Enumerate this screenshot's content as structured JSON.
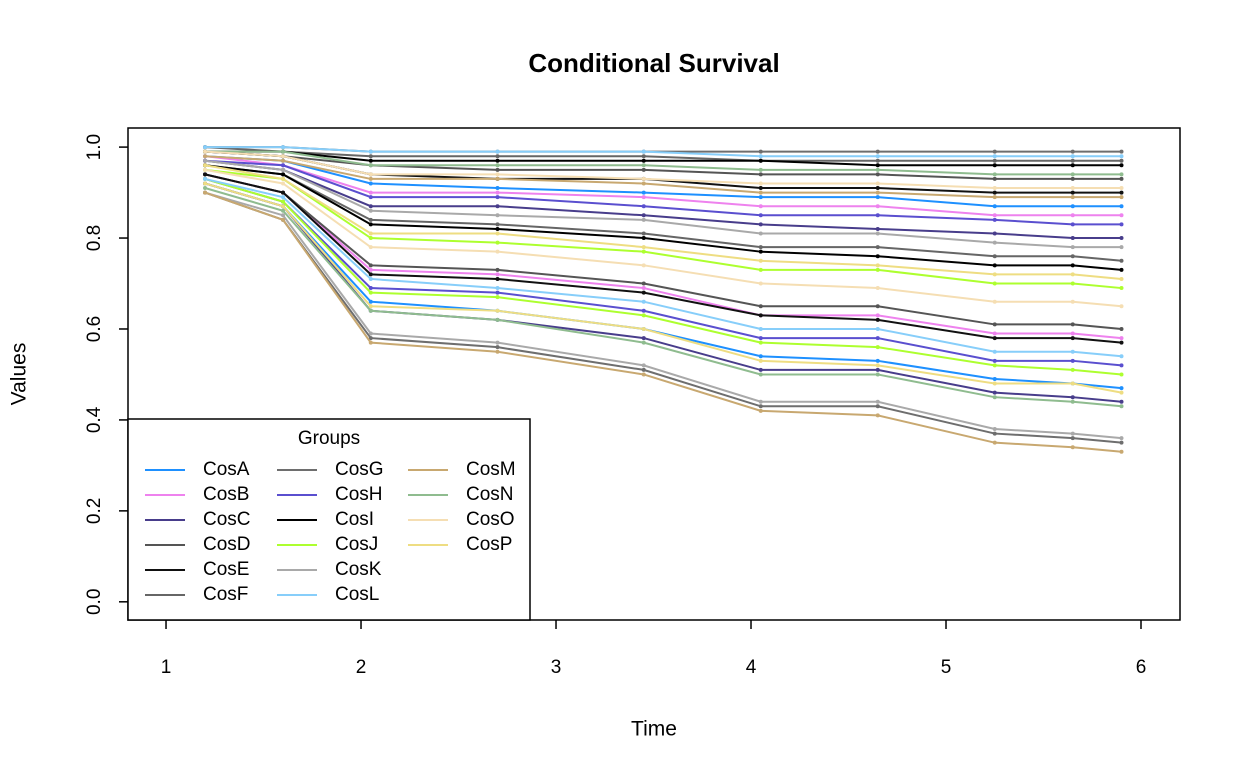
{
  "chart_data": {
    "type": "line",
    "title": "Conditional Survival",
    "x_label": "Time",
    "y_label": "Values",
    "x": [
      1.2,
      1.6,
      2.05,
      2.7,
      3.45,
      4.05,
      4.65,
      5.25,
      5.65,
      5.9
    ],
    "xlim": [
      0.805,
      6.2
    ],
    "xticks": [
      1,
      2,
      3,
      4,
      5,
      6
    ],
    "ylim": [
      -0.04,
      1.042
    ],
    "yticks": [
      0.0,
      0.2,
      0.4,
      0.6,
      0.8,
      1.0
    ],
    "yticks_labels": [
      "0.0",
      "0.2",
      "0.4",
      "0.6",
      "0.8",
      "1.0"
    ],
    "legend_title": "Groups",
    "legend_position": "bottom-left",
    "series": [
      {
        "name": "CosA",
        "color": "#1e90ff",
        "values": [
          [
            0.92,
            0.87,
            0.66,
            0.64,
            0.6,
            0.54,
            0.53,
            0.49,
            0.48,
            0.47
          ],
          [
            0.98,
            0.97,
            0.92,
            0.91,
            0.9,
            0.89,
            0.89,
            0.87,
            0.87,
            0.87
          ]
        ]
      },
      {
        "name": "CosB",
        "color": "#ee82ee",
        "values": [
          [
            0.94,
            0.9,
            0.73,
            0.72,
            0.69,
            0.63,
            0.63,
            0.59,
            0.59,
            0.58
          ],
          [
            0.98,
            0.96,
            0.9,
            0.9,
            0.89,
            0.87,
            0.87,
            0.85,
            0.85,
            0.85
          ]
        ]
      },
      {
        "name": "CosC",
        "color": "#483d8b",
        "values": [
          [
            0.92,
            0.87,
            0.64,
            0.62,
            0.58,
            0.51,
            0.51,
            0.46,
            0.45,
            0.44
          ],
          [
            0.97,
            0.95,
            0.87,
            0.87,
            0.85,
            0.83,
            0.82,
            0.81,
            0.8,
            0.8
          ]
        ]
      },
      {
        "name": "CosD",
        "color": "#555555",
        "values": [
          [
            0.94,
            0.9,
            0.74,
            0.73,
            0.7,
            0.65,
            0.65,
            0.61,
            0.61,
            0.6
          ],
          [
            0.99,
            0.98,
            0.96,
            0.95,
            0.95,
            0.94,
            0.94,
            0.93,
            0.93,
            0.93
          ]
        ]
      },
      {
        "name": "CosE",
        "color": "#111111",
        "values": [
          [
            0.94,
            0.9,
            0.72,
            0.71,
            0.68,
            0.63,
            0.62,
            0.58,
            0.58,
            0.57
          ],
          [
            0.99,
            0.98,
            0.94,
            0.93,
            0.93,
            0.91,
            0.91,
            0.9,
            0.9,
            0.9
          ]
        ]
      },
      {
        "name": "CosF",
        "color": "#666666",
        "values": [
          [
            0.96,
            0.94,
            0.84,
            0.83,
            0.81,
            0.78,
            0.78,
            0.76,
            0.76,
            0.75
          ],
          [
            1.0,
            0.99,
            0.98,
            0.98,
            0.98,
            0.97,
            0.97,
            0.97,
            0.97,
            0.97
          ]
        ]
      },
      {
        "name": "CosG",
        "color": "#6e6e6e",
        "values": [
          [
            0.9,
            0.84,
            0.58,
            0.56,
            0.51,
            0.43,
            0.43,
            0.37,
            0.36,
            0.35
          ],
          [
            1.0,
            1.0,
            0.99,
            0.99,
            0.99,
            0.99,
            0.99,
            0.99,
            0.99,
            0.99
          ]
        ]
      },
      {
        "name": "CosH",
        "color": "#5a4fcf",
        "values": [
          [
            0.93,
            0.88,
            0.69,
            0.68,
            0.64,
            0.58,
            0.58,
            0.53,
            0.53,
            0.52
          ],
          [
            0.97,
            0.96,
            0.89,
            0.89,
            0.87,
            0.85,
            0.85,
            0.84,
            0.83,
            0.83
          ]
        ]
      },
      {
        "name": "CosI",
        "color": "#000000",
        "values": [
          [
            0.96,
            0.94,
            0.83,
            0.82,
            0.8,
            0.77,
            0.76,
            0.74,
            0.74,
            0.73
          ],
          [
            0.99,
            0.99,
            0.97,
            0.97,
            0.97,
            0.97,
            0.96,
            0.96,
            0.96,
            0.96
          ]
        ]
      },
      {
        "name": "CosJ",
        "color": "#adff2f",
        "values": [
          [
            0.95,
            0.93,
            0.8,
            0.79,
            0.77,
            0.73,
            0.73,
            0.7,
            0.7,
            0.69
          ],
          [
            0.93,
            0.88,
            0.68,
            0.67,
            0.63,
            0.57,
            0.56,
            0.52,
            0.51,
            0.5
          ]
        ]
      },
      {
        "name": "CosK",
        "color": "#a9a9a9",
        "values": [
          [
            0.9,
            0.85,
            0.59,
            0.57,
            0.52,
            0.44,
            0.44,
            0.38,
            0.37,
            0.36
          ],
          [
            0.97,
            0.95,
            0.86,
            0.85,
            0.84,
            0.81,
            0.81,
            0.79,
            0.78,
            0.78
          ]
        ]
      },
      {
        "name": "CosL",
        "color": "#87cefa",
        "values": [
          [
            0.93,
            0.89,
            0.71,
            0.69,
            0.66,
            0.6,
            0.6,
            0.55,
            0.55,
            0.54
          ],
          [
            1.0,
            1.0,
            0.99,
            0.99,
            0.99,
            0.98,
            0.98,
            0.98,
            0.98,
            0.98
          ]
        ]
      },
      {
        "name": "CosM",
        "color": "#c8a870",
        "values": [
          [
            0.9,
            0.84,
            0.57,
            0.55,
            0.5,
            0.42,
            0.41,
            0.35,
            0.34,
            0.33
          ],
          [
            0.98,
            0.97,
            0.93,
            0.93,
            0.92,
            0.9,
            0.9,
            0.89,
            0.89,
            0.89
          ]
        ]
      },
      {
        "name": "CosN",
        "color": "#8fbc8f",
        "values": [
          [
            0.91,
            0.86,
            0.64,
            0.62,
            0.57,
            0.5,
            0.5,
            0.45,
            0.44,
            0.43
          ],
          [
            0.99,
            0.99,
            0.96,
            0.96,
            0.96,
            0.95,
            0.95,
            0.94,
            0.94,
            0.94
          ]
        ]
      },
      {
        "name": "CosO",
        "color": "#f5deb3",
        "values": [
          [
            0.95,
            0.92,
            0.78,
            0.77,
            0.74,
            0.7,
            0.69,
            0.66,
            0.66,
            0.65
          ],
          [
            0.99,
            0.98,
            0.94,
            0.94,
            0.93,
            0.92,
            0.92,
            0.91,
            0.91,
            0.91
          ]
        ]
      },
      {
        "name": "CosP",
        "color": "#eedd82",
        "values": [
          [
            0.96,
            0.93,
            0.81,
            0.81,
            0.78,
            0.75,
            0.74,
            0.72,
            0.72,
            0.71
          ],
          [
            0.92,
            0.87,
            0.65,
            0.64,
            0.6,
            0.53,
            0.52,
            0.48,
            0.48,
            0.46
          ]
        ]
      }
    ]
  }
}
